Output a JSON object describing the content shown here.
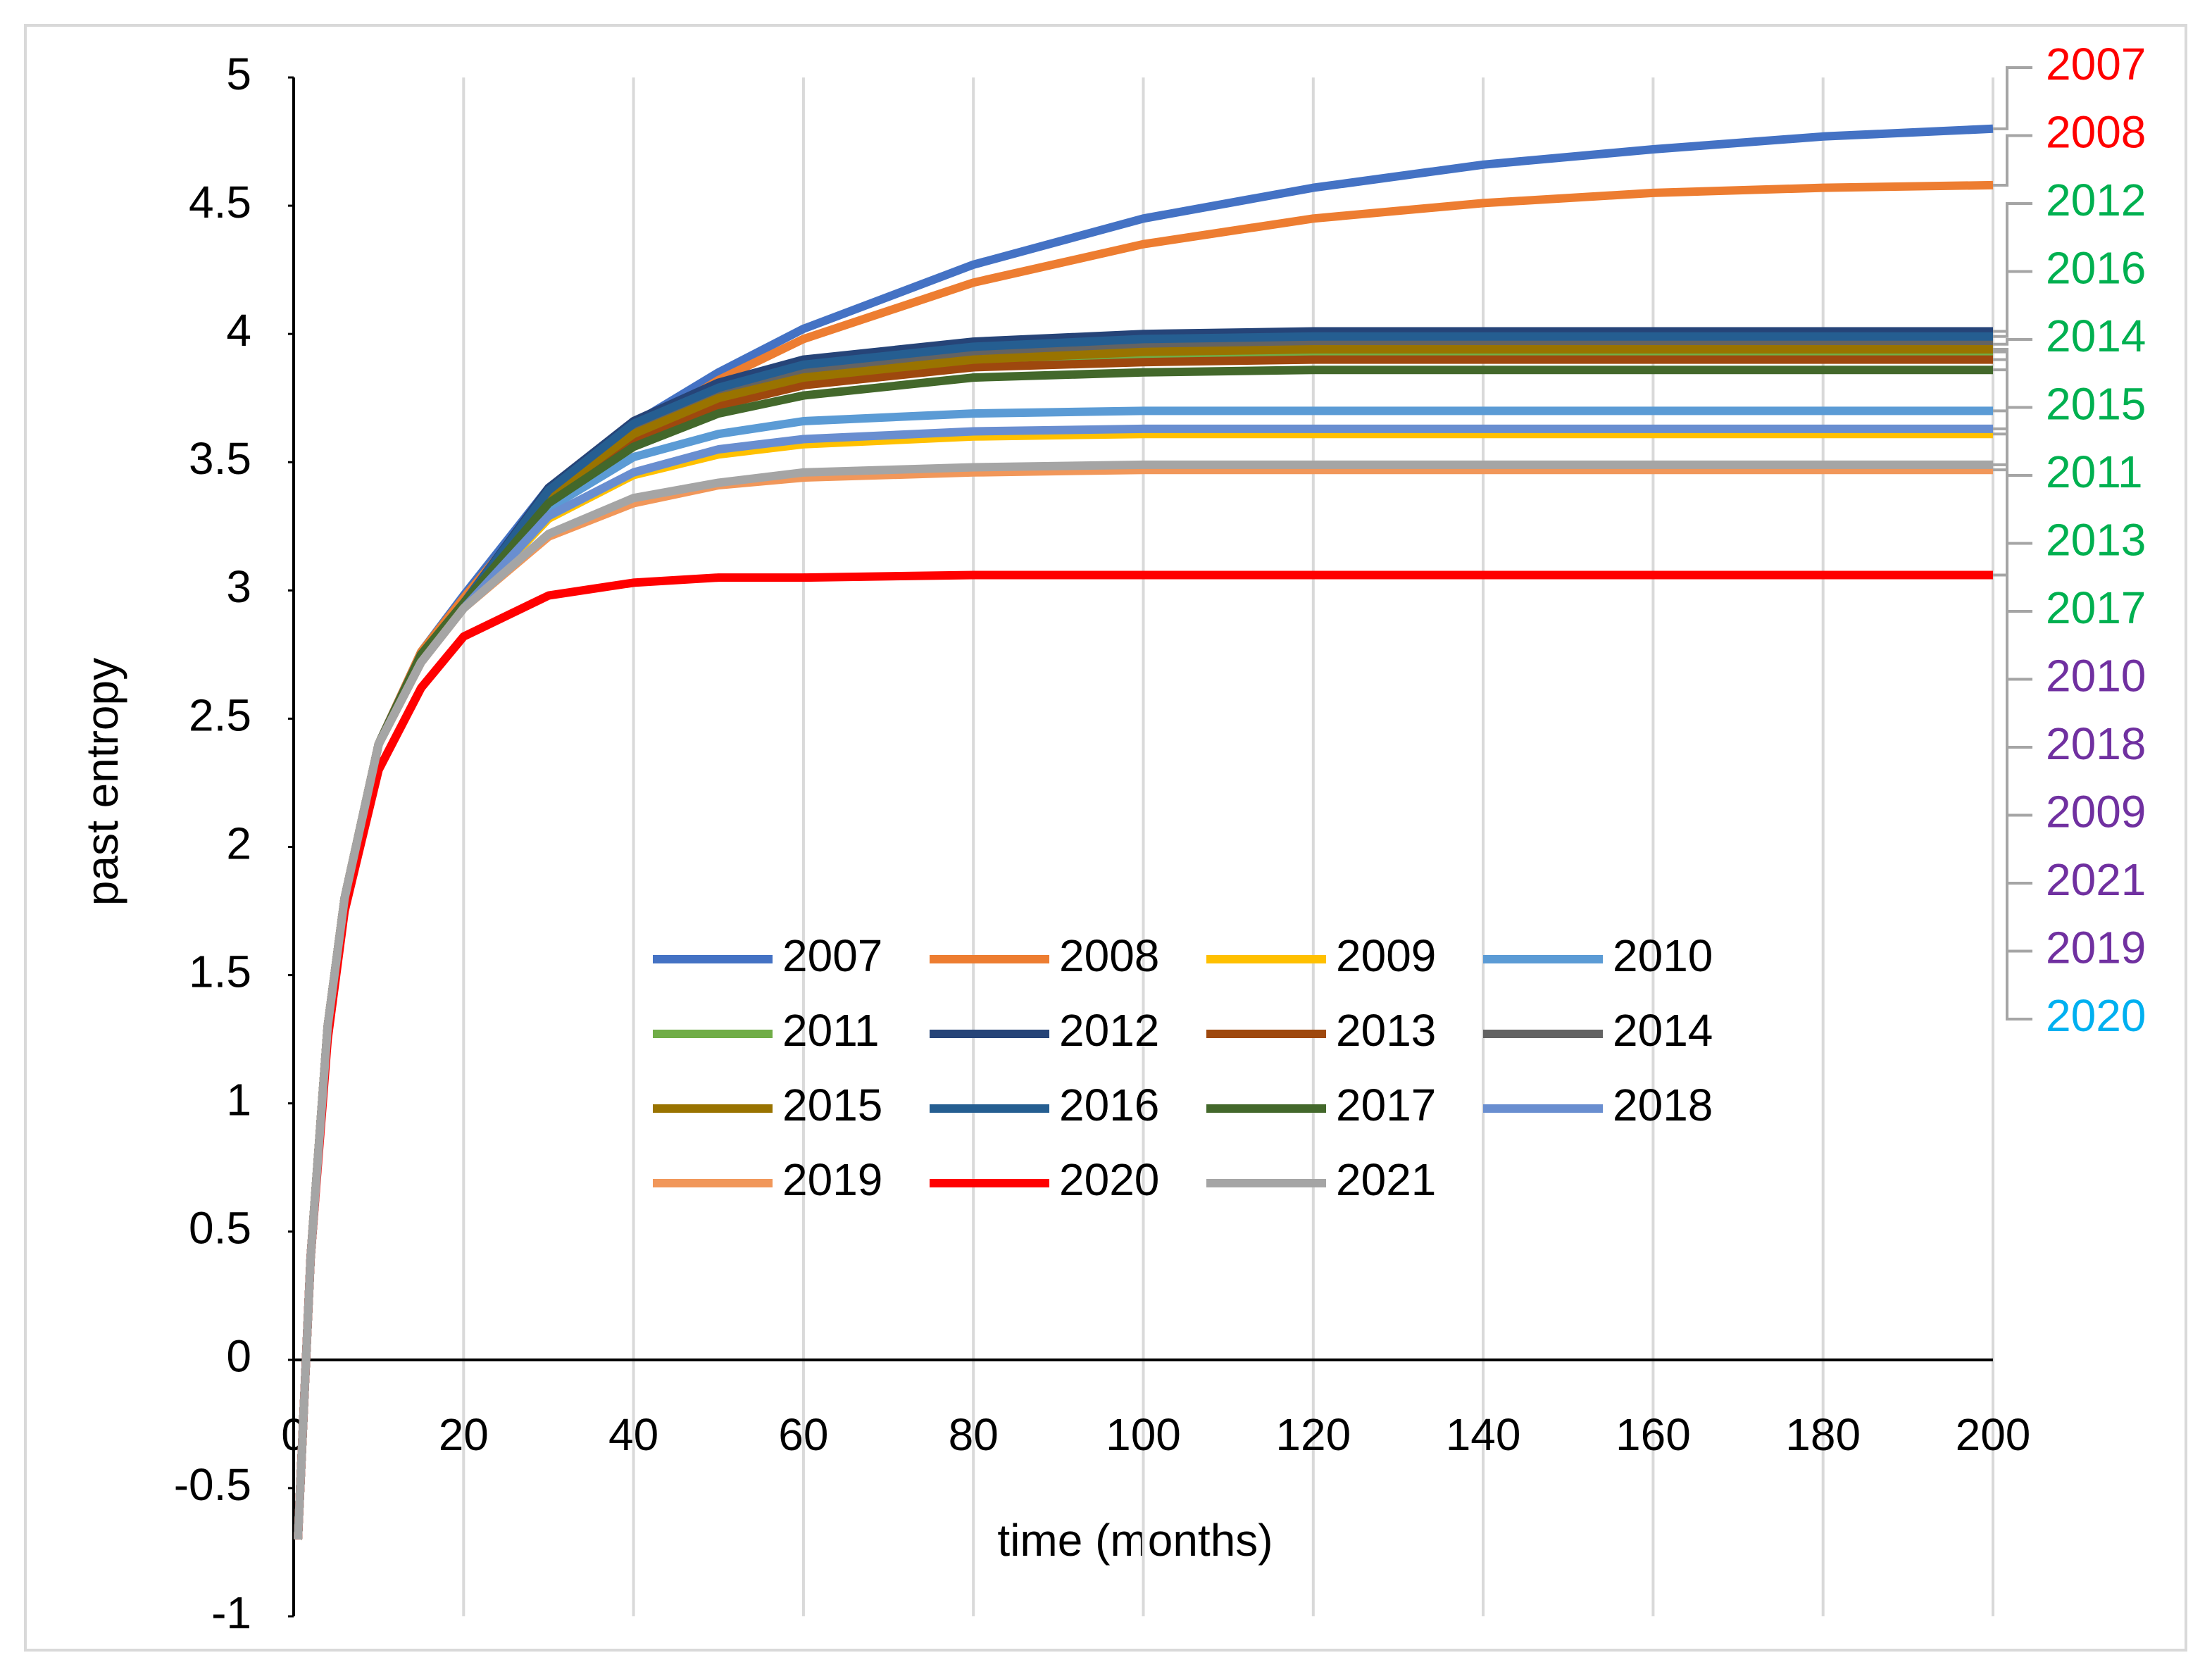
{
  "chart_data": {
    "type": "line",
    "xlabel": "time (months)",
    "ylabel": "past entropy",
    "xlim": [
      0,
      200
    ],
    "ylim": [
      -1,
      5
    ],
    "xticks": [
      0,
      20,
      40,
      60,
      80,
      100,
      120,
      140,
      160,
      180,
      200
    ],
    "yticks": [
      -1,
      -0.5,
      0,
      0.5,
      1,
      1.5,
      2,
      2.5,
      3,
      3.5,
      4,
      4.5,
      5
    ],
    "grid": "x",
    "legend": "center",
    "x": [
      0.5,
      2,
      4,
      6,
      10,
      15,
      20,
      30,
      40,
      50,
      60,
      80,
      100,
      120,
      140,
      160,
      180,
      200
    ],
    "series": [
      {
        "name": "2007",
        "color": "#4472c4",
        "values": [
          -0.7,
          0.4,
          1.3,
          1.8,
          2.4,
          2.76,
          2.98,
          3.4,
          3.65,
          3.85,
          4.02,
          4.27,
          4.45,
          4.57,
          4.66,
          4.72,
          4.77,
          4.8
        ]
      },
      {
        "name": "2008",
        "color": "#ed7d31",
        "values": [
          -0.7,
          0.4,
          1.3,
          1.8,
          2.4,
          2.76,
          2.97,
          3.37,
          3.62,
          3.82,
          3.98,
          4.2,
          4.35,
          4.45,
          4.51,
          4.55,
          4.57,
          4.58
        ]
      },
      {
        "name": "2009",
        "color": "#ffc000",
        "values": [
          -0.7,
          0.4,
          1.3,
          1.8,
          2.4,
          2.72,
          2.93,
          3.28,
          3.45,
          3.53,
          3.57,
          3.6,
          3.61,
          3.61,
          3.61,
          3.61,
          3.61,
          3.61
        ]
      },
      {
        "name": "2010",
        "color": "#5b9bd5",
        "values": [
          -0.7,
          0.4,
          1.3,
          1.8,
          2.4,
          2.72,
          2.93,
          3.32,
          3.52,
          3.61,
          3.66,
          3.69,
          3.7,
          3.7,
          3.7,
          3.7,
          3.7,
          3.7
        ]
      },
      {
        "name": "2011",
        "color": "#70ad47",
        "values": [
          -0.7,
          0.4,
          1.3,
          1.8,
          2.4,
          2.75,
          2.95,
          3.37,
          3.61,
          3.74,
          3.82,
          3.89,
          3.92,
          3.93,
          3.93,
          3.93,
          3.93,
          3.93
        ]
      },
      {
        "name": "2012",
        "color": "#264478",
        "values": [
          -0.7,
          0.4,
          1.3,
          1.8,
          2.4,
          2.75,
          2.95,
          3.4,
          3.66,
          3.81,
          3.9,
          3.97,
          4.0,
          4.01,
          4.01,
          4.01,
          4.01,
          4.01
        ]
      },
      {
        "name": "2013",
        "color": "#9e480e",
        "values": [
          -0.7,
          0.4,
          1.3,
          1.8,
          2.4,
          2.75,
          2.95,
          3.35,
          3.59,
          3.72,
          3.8,
          3.87,
          3.89,
          3.9,
          3.9,
          3.9,
          3.9,
          3.9
        ]
      },
      {
        "name": "2014",
        "color": "#636363",
        "values": [
          -0.7,
          0.4,
          1.3,
          1.8,
          2.4,
          2.75,
          2.95,
          3.38,
          3.63,
          3.77,
          3.85,
          3.92,
          3.95,
          3.96,
          3.96,
          3.96,
          3.96,
          3.96
        ]
      },
      {
        "name": "2015",
        "color": "#997300",
        "values": [
          -0.7,
          0.4,
          1.3,
          1.8,
          2.4,
          2.75,
          2.95,
          3.37,
          3.61,
          3.75,
          3.83,
          3.9,
          3.93,
          3.94,
          3.94,
          3.94,
          3.94,
          3.94
        ]
      },
      {
        "name": "2016",
        "color": "#255e91",
        "values": [
          -0.7,
          0.4,
          1.3,
          1.8,
          2.4,
          2.75,
          2.95,
          3.39,
          3.65,
          3.79,
          3.88,
          3.95,
          3.98,
          3.99,
          3.99,
          3.99,
          3.99,
          3.99
        ]
      },
      {
        "name": "2017",
        "color": "#43682b",
        "values": [
          -0.7,
          0.4,
          1.3,
          1.8,
          2.4,
          2.75,
          2.95,
          3.34,
          3.56,
          3.69,
          3.76,
          3.83,
          3.85,
          3.86,
          3.86,
          3.86,
          3.86,
          3.86
        ]
      },
      {
        "name": "2018",
        "color": "#698ed0",
        "values": [
          -0.7,
          0.4,
          1.3,
          1.8,
          2.4,
          2.72,
          2.93,
          3.29,
          3.46,
          3.55,
          3.59,
          3.62,
          3.63,
          3.63,
          3.63,
          3.63,
          3.63,
          3.63
        ]
      },
      {
        "name": "2019",
        "color": "#f1975a",
        "values": [
          -0.7,
          0.4,
          1.3,
          1.8,
          2.4,
          2.72,
          2.93,
          3.21,
          3.34,
          3.41,
          3.44,
          3.46,
          3.47,
          3.47,
          3.47,
          3.47,
          3.47,
          3.47
        ]
      },
      {
        "name": "2020",
        "color": "#ff0000",
        "values": [
          -0.7,
          0.4,
          1.25,
          1.75,
          2.3,
          2.62,
          2.82,
          2.98,
          3.03,
          3.05,
          3.05,
          3.06,
          3.06,
          3.06,
          3.06,
          3.06,
          3.06,
          3.06
        ]
      },
      {
        "name": "2021",
        "color": "#a5a5a5",
        "values": [
          -0.7,
          0.4,
          1.3,
          1.8,
          2.4,
          2.72,
          2.93,
          3.22,
          3.36,
          3.42,
          3.46,
          3.48,
          3.49,
          3.49,
          3.49,
          3.49,
          3.49,
          3.49
        ]
      }
    ],
    "annotations": [
      {
        "text": "2007",
        "color": "#ff0000"
      },
      {
        "text": "2008",
        "color": "#ff0000"
      },
      {
        "text": "2012",
        "color": "#00b050"
      },
      {
        "text": "2016",
        "color": "#00b050"
      },
      {
        "text": "2014",
        "color": "#00b050"
      },
      {
        "text": "2015",
        "color": "#00b050"
      },
      {
        "text": "2011",
        "color": "#00b050"
      },
      {
        "text": "2013",
        "color": "#00b050"
      },
      {
        "text": "2017",
        "color": "#00b050"
      },
      {
        "text": "2010",
        "color": "#7030a0"
      },
      {
        "text": "2018",
        "color": "#7030a0"
      },
      {
        "text": "2009",
        "color": "#7030a0"
      },
      {
        "text": "2021",
        "color": "#7030a0"
      },
      {
        "text": "2019",
        "color": "#7030a0"
      },
      {
        "text": "2020",
        "color": "#00b0f0"
      }
    ]
  }
}
